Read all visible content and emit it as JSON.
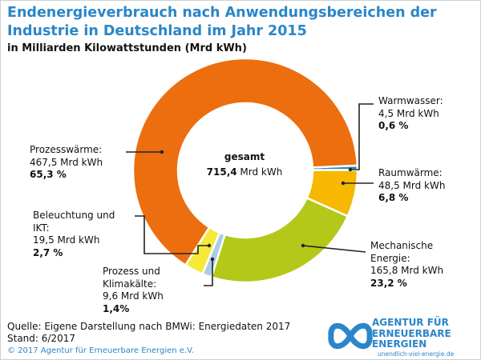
{
  "title": "Endenergieverbrauch nach Anwendungsbereichen der Industrie in Deutschland im Jahr 2015",
  "subtitle": "in Milliarden Kilowattstunden (Mrd kWh)",
  "center": {
    "label": "gesamt",
    "value": "715,4",
    "unit": " Mrd kWh"
  },
  "source": {
    "line1": "Quelle: Eigene Darstellung nach BMWi: Energiedaten 2017",
    "line2": "Stand: 6/2017"
  },
  "copyright": "© 2017 Agentur für Erneuerbare Energien e.V.",
  "logo": {
    "line1": "AGENTUR FÜR",
    "line2": "ERNEUERBARE",
    "line3": "ENERGIEN",
    "url": "unendlich-viel-energie.de"
  },
  "chart_data": {
    "type": "pie",
    "variant": "donut",
    "title": "Endenergieverbrauch nach Anwendungsbereichen der Industrie in Deutschland im Jahr 2015",
    "unit": "Mrd kWh",
    "total": 715.4,
    "slices": [
      {
        "key": "warmwasser",
        "name": "Warmwasser:",
        "name2": "",
        "value": 4.5,
        "value_label": "4,5 Mrd kWh",
        "percent_label": "0,6 %",
        "color": "#1a8fc9"
      },
      {
        "key": "raumwaerme",
        "name": "Raumwärme:",
        "name2": "",
        "value": 48.5,
        "value_label": "48,5 Mrd kWh",
        "percent_label": "6,8 %",
        "color": "#f6b800"
      },
      {
        "key": "mechanische",
        "name": "Mechanische",
        "name2": "Energie:",
        "value": 165.8,
        "value_label": "165,8 Mrd kWh",
        "percent_label": "23,2 %",
        "color": "#b4c81a"
      },
      {
        "key": "kaelte",
        "name": "Prozess und",
        "name2": "Klimakälte:",
        "value": 9.6,
        "value_label": "9,6 Mrd kWh",
        "percent_label": "1,4%",
        "color": "#a9cde8"
      },
      {
        "key": "beleuchtung",
        "name": "Beleuchtung und",
        "name2": "IKT:",
        "value": 19.5,
        "value_label": "19,5 Mrd kWh",
        "percent_label": "2,7 %",
        "color": "#f7e93a"
      },
      {
        "key": "prozesswaerme",
        "name": "Prozesswärme:",
        "name2": "",
        "value": 467.5,
        "value_label": "467,5 Mrd kWh",
        "percent_label": "65,3 %",
        "color": "#ec6e0f"
      }
    ]
  }
}
